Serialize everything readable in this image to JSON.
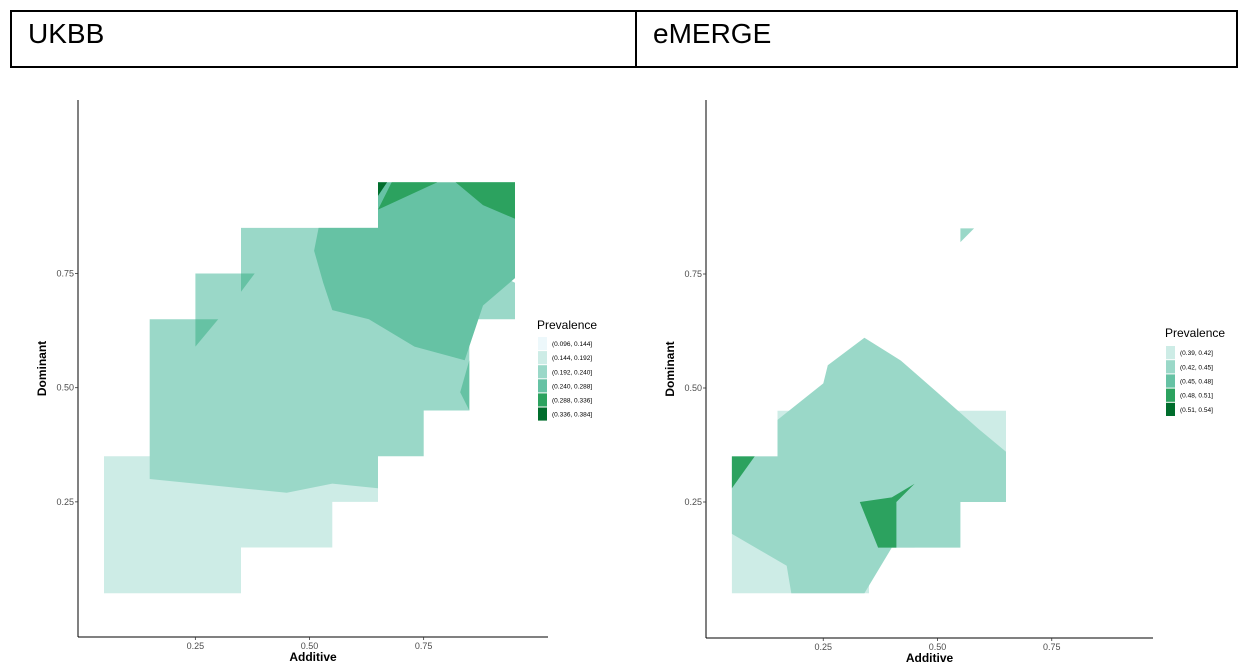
{
  "header": {
    "left_label": "UKBB",
    "right_label": "eMERGE"
  },
  "palette": [
    "#edf8fb",
    "#cdece6",
    "#9ad8c8",
    "#66c2a4",
    "#2ca25f",
    "#006d2c"
  ],
  "chart_data": [
    {
      "type": "heatmap",
      "subtype": "filled-contour",
      "panel": "UKBB",
      "title": "",
      "xlabel": "Additive",
      "ylabel": "Dominant",
      "xlim": [
        0,
        1
      ],
      "ylim": [
        0,
        1
      ],
      "x_ticks": [
        "0.25",
        "0.50",
        "0.75"
      ],
      "y_ticks": [
        "0.25",
        "0.50",
        "0.75"
      ],
      "x_tick_values": [
        0.25,
        0.5,
        0.75
      ],
      "y_tick_values": [
        0.25,
        0.5,
        0.75
      ],
      "grid": false,
      "legend_position": "right",
      "legend_title": "Prevalence",
      "legend": [
        "(0.096, 0.144]",
        "(0.144, 0.192]",
        "(0.192, 0.240]",
        "(0.240, 0.288]",
        "(0.288, 0.336]",
        "(0.336, 0.384]"
      ],
      "legend_levels": [
        0,
        1,
        2,
        3,
        4,
        5
      ],
      "regions": [
        {
          "level": 1,
          "points": [
            [
              0.05,
              0.05
            ],
            [
              0.35,
              0.05
            ],
            [
              0.35,
              0.15
            ],
            [
              0.55,
              0.15
            ],
            [
              0.55,
              0.25
            ],
            [
              0.65,
              0.25
            ],
            [
              0.65,
              0.35
            ],
            [
              0.55,
              0.35
            ],
            [
              0.35,
              0.35
            ],
            [
              0.15,
              0.35
            ],
            [
              0.05,
              0.35
            ]
          ]
        },
        {
          "level": 2,
          "points": [
            [
              0.15,
              0.3
            ],
            [
              0.25,
              0.29
            ],
            [
              0.35,
              0.28
            ],
            [
              0.45,
              0.27
            ],
            [
              0.55,
              0.29
            ],
            [
              0.65,
              0.28
            ],
            [
              0.65,
              0.35
            ],
            [
              0.75,
              0.35
            ],
            [
              0.75,
              0.45
            ],
            [
              0.85,
              0.45
            ],
            [
              0.85,
              0.65
            ],
            [
              0.95,
              0.65
            ],
            [
              0.95,
              0.73
            ],
            [
              0.85,
              0.78
            ],
            [
              0.65,
              0.85
            ],
            [
              0.55,
              0.85
            ],
            [
              0.35,
              0.85
            ],
            [
              0.35,
              0.75
            ],
            [
              0.25,
              0.75
            ],
            [
              0.25,
              0.65
            ],
            [
              0.15,
              0.65
            ],
            [
              0.15,
              0.55
            ]
          ]
        },
        {
          "level": 3,
          "points": [
            [
              0.25,
              0.59
            ],
            [
              0.3,
              0.65
            ],
            [
              0.25,
              0.65
            ]
          ]
        },
        {
          "level": 3,
          "points": [
            [
              0.35,
              0.71
            ],
            [
              0.38,
              0.75
            ],
            [
              0.35,
              0.75
            ]
          ]
        },
        {
          "level": 3,
          "points": [
            [
              0.52,
              0.85
            ],
            [
              0.65,
              0.85
            ],
            [
              0.65,
              0.95
            ],
            [
              0.95,
              0.95
            ],
            [
              0.95,
              0.74
            ],
            [
              0.88,
              0.68
            ],
            [
              0.84,
              0.56
            ],
            [
              0.73,
              0.59
            ],
            [
              0.63,
              0.65
            ],
            [
              0.55,
              0.67
            ],
            [
              0.53,
              0.73
            ],
            [
              0.51,
              0.8
            ]
          ]
        },
        {
          "level": 3,
          "points": [
            [
              0.85,
              0.56
            ],
            [
              0.85,
              0.45
            ],
            [
              0.83,
              0.49
            ]
          ]
        },
        {
          "level": 4,
          "points": [
            [
              0.65,
              0.89
            ],
            [
              0.68,
              0.95
            ],
            [
              0.78,
              0.95
            ]
          ]
        },
        {
          "level": 4,
          "points": [
            [
              0.82,
              0.95
            ],
            [
              0.95,
              0.95
            ],
            [
              0.95,
              0.87
            ],
            [
              0.88,
              0.9
            ]
          ]
        },
        {
          "level": 5,
          "points": [
            [
              0.65,
              0.92
            ],
            [
              0.67,
              0.95
            ],
            [
              0.65,
              0.95
            ]
          ]
        }
      ]
    },
    {
      "type": "heatmap",
      "subtype": "filled-contour",
      "panel": "eMERGE",
      "title": "",
      "xlabel": "Additive",
      "ylabel": "Dominant",
      "xlim": [
        0,
        1
      ],
      "ylim": [
        0,
        1
      ],
      "x_ticks": [
        "0.25",
        "0.50",
        "0.75"
      ],
      "y_ticks": [
        "0.25",
        "0.50",
        "0.75"
      ],
      "x_tick_values": [
        0.25,
        0.5,
        0.75
      ],
      "y_tick_values": [
        0.25,
        0.5,
        0.75
      ],
      "grid": false,
      "legend_position": "right",
      "legend_title": "Prevalence",
      "legend": [
        "(0.39, 0.42]",
        "(0.42, 0.45]",
        "(0.45, 0.48]",
        "(0.48, 0.51]",
        "(0.51, 0.54]"
      ],
      "legend_levels": [
        1,
        2,
        3,
        4,
        5
      ],
      "regions": [
        {
          "level": 1,
          "points": [
            [
              0.05,
              0.05
            ],
            [
              0.35,
              0.05
            ],
            [
              0.35,
              0.15
            ],
            [
              0.45,
              0.15
            ],
            [
              0.45,
              0.25
            ],
            [
              0.55,
              0.25
            ],
            [
              0.55,
              0.35
            ],
            [
              0.65,
              0.35
            ],
            [
              0.65,
              0.45
            ],
            [
              0.25,
              0.45
            ],
            [
              0.15,
              0.45
            ],
            [
              0.15,
              0.35
            ],
            [
              0.05,
              0.35
            ]
          ]
        },
        {
          "level": 2,
          "points": [
            [
              0.05,
              0.35
            ],
            [
              0.15,
              0.35
            ],
            [
              0.15,
              0.43
            ],
            [
              0.25,
              0.51
            ],
            [
              0.26,
              0.55
            ],
            [
              0.34,
              0.61
            ],
            [
              0.42,
              0.56
            ],
            [
              0.5,
              0.49
            ],
            [
              0.59,
              0.41
            ],
            [
              0.65,
              0.36
            ],
            [
              0.65,
              0.25
            ],
            [
              0.55,
              0.25
            ],
            [
              0.55,
              0.15
            ],
            [
              0.45,
              0.15
            ],
            [
              0.4,
              0.15
            ],
            [
              0.34,
              0.05
            ],
            [
              0.18,
              0.05
            ],
            [
              0.17,
              0.11
            ],
            [
              0.05,
              0.18
            ]
          ]
        },
        {
          "level": 2,
          "points": [
            [
              0.55,
              0.85
            ],
            [
              0.58,
              0.85
            ],
            [
              0.55,
              0.82
            ]
          ]
        },
        {
          "level": 4,
          "points": [
            [
              0.05,
              0.28
            ],
            [
              0.1,
              0.35
            ],
            [
              0.05,
              0.35
            ]
          ]
        },
        {
          "level": 4,
          "points": [
            [
              0.33,
              0.25
            ],
            [
              0.4,
              0.26
            ],
            [
              0.45,
              0.29
            ],
            [
              0.41,
              0.25
            ],
            [
              0.41,
              0.15
            ],
            [
              0.37,
              0.15
            ]
          ]
        }
      ]
    }
  ]
}
